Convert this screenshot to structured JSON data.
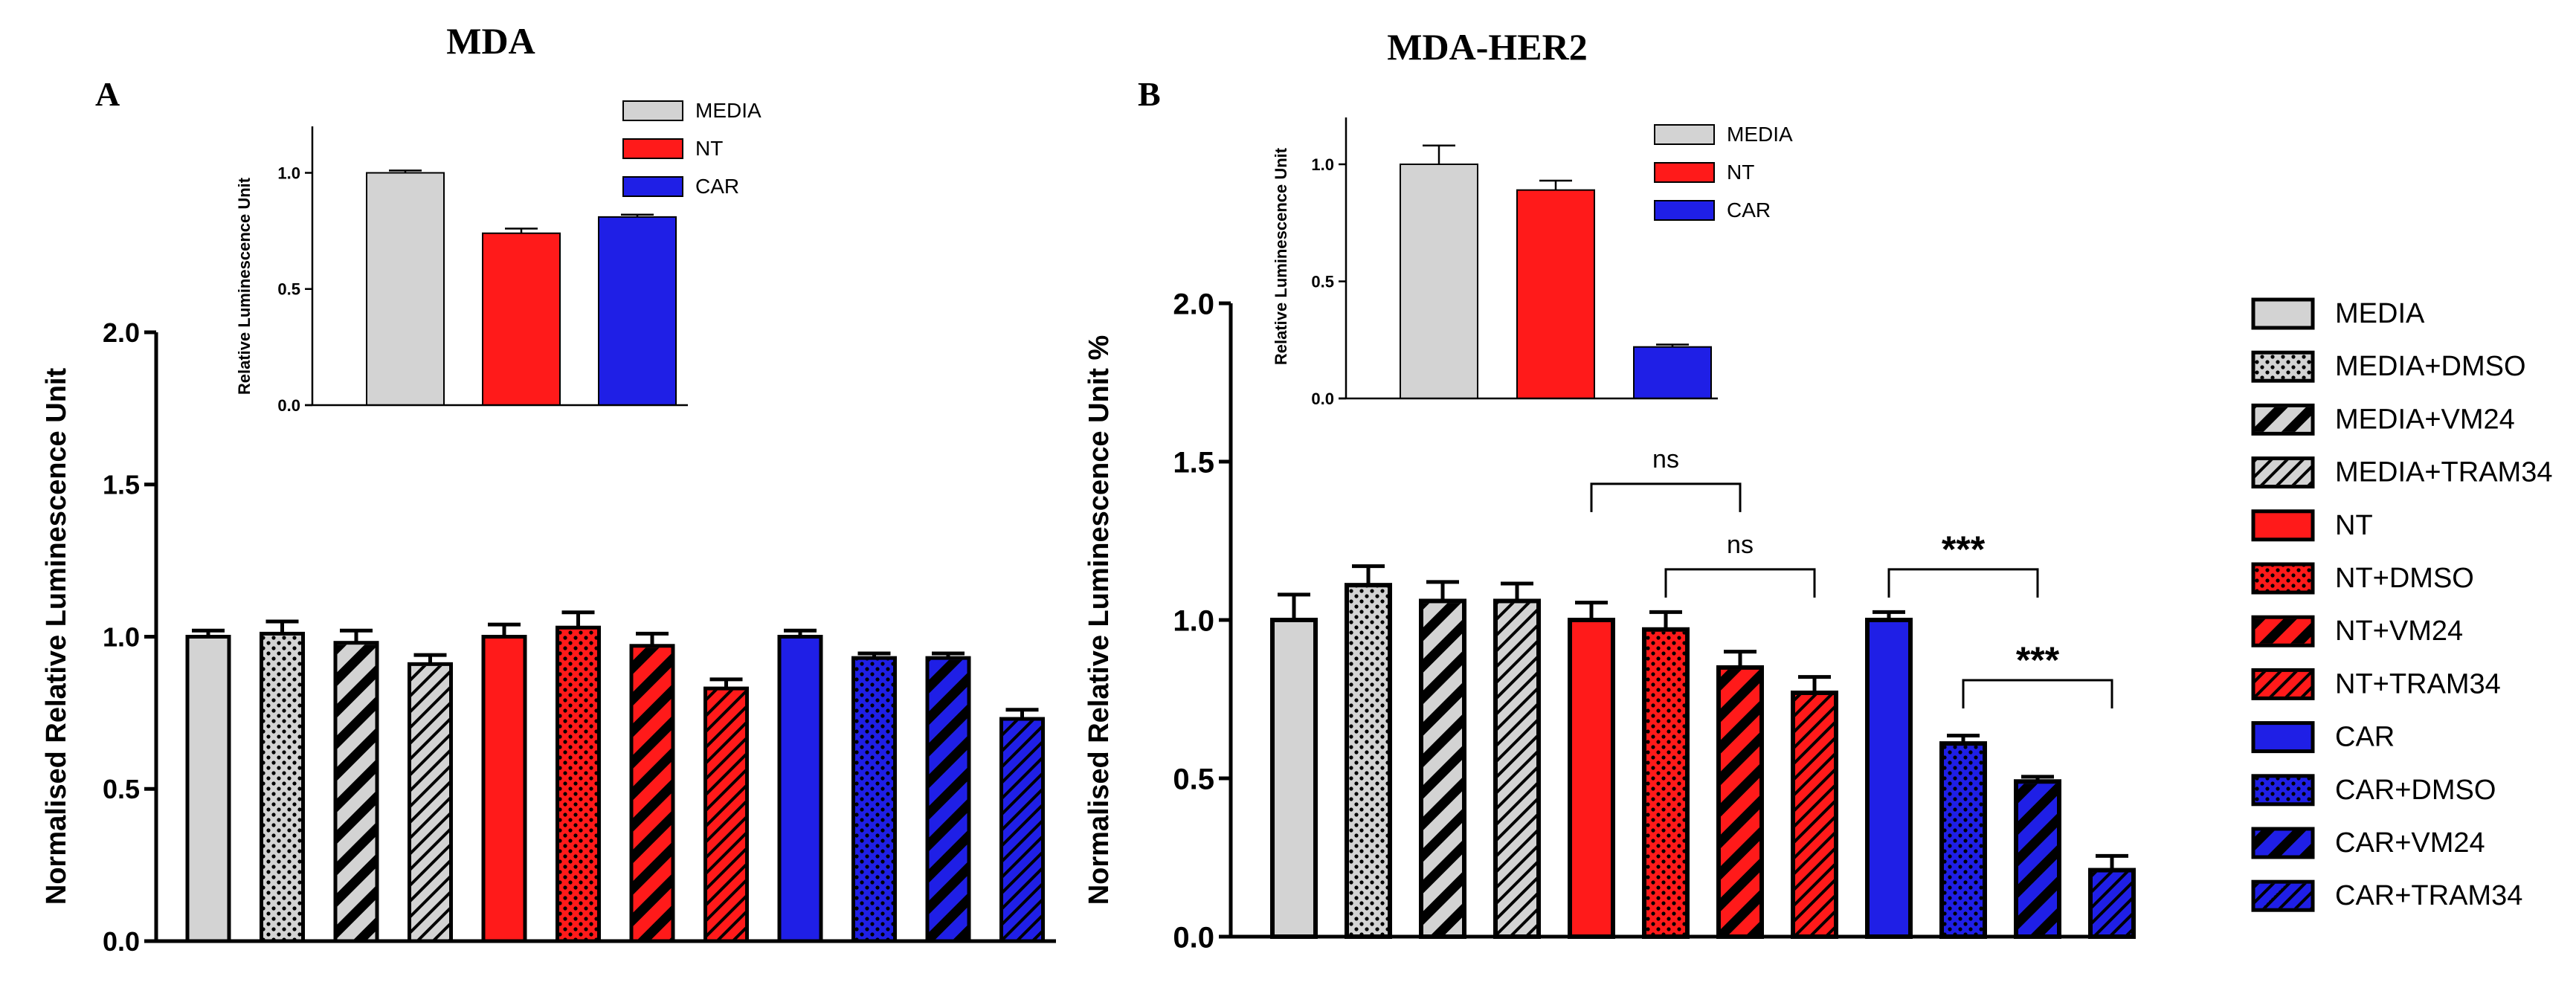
{
  "colors": {
    "media": "#d3d3d3",
    "nt": "#ff1a1a",
    "car": "#1f1fe6",
    "axis": "#000000"
  },
  "legend": {
    "items": [
      {
        "label": "MEDIA",
        "color": "#d3d3d3",
        "pattern": "solid"
      },
      {
        "label": "MEDIA+DMSO",
        "color": "#d3d3d3",
        "pattern": "dots"
      },
      {
        "label": "MEDIA+VM24",
        "color": "#d3d3d3",
        "pattern": "wide-diagonal"
      },
      {
        "label": "MEDIA+TRAM34",
        "color": "#d3d3d3",
        "pattern": "thin-diagonal"
      },
      {
        "label": "NT",
        "color": "#ff1a1a",
        "pattern": "solid"
      },
      {
        "label": "NT+DMSO",
        "color": "#ff1a1a",
        "pattern": "dots"
      },
      {
        "label": "NT+VM24",
        "color": "#ff1a1a",
        "pattern": "wide-diagonal"
      },
      {
        "label": "NT+TRAM34",
        "color": "#ff1a1a",
        "pattern": "thin-diagonal"
      },
      {
        "label": "CAR",
        "color": "#1f1fe6",
        "pattern": "solid"
      },
      {
        "label": "CAR+DMSO",
        "color": "#1f1fe6",
        "pattern": "dots"
      },
      {
        "label": "CAR+VM24",
        "color": "#1f1fe6",
        "pattern": "wide-diagonal"
      },
      {
        "label": "CAR+TRAM34",
        "color": "#1f1fe6",
        "pattern": "thin-diagonal"
      }
    ]
  },
  "chart_data": [
    {
      "id": "A-main",
      "type": "bar",
      "title": "MDA",
      "panel_label": "A",
      "ylabel": "Normalised Relative Luminescence Unit",
      "ylim": [
        0,
        2.0
      ],
      "yticks": [
        "0.0",
        "0.5",
        "1.0",
        "1.5",
        "2.0"
      ],
      "grid": false,
      "categories": [
        "MEDIA",
        "MEDIA+DMSO",
        "MEDIA+VM24",
        "MEDIA+TRAM34",
        "NT",
        "NT+DMSO",
        "NT+VM24",
        "NT+TRAM34",
        "CAR",
        "CAR+DMSO",
        "CAR+VM24",
        "CAR+TRAM34"
      ],
      "values": [
        1.0,
        1.01,
        0.98,
        0.91,
        1.0,
        1.03,
        0.97,
        0.83,
        1.0,
        0.93,
        0.93,
        0.73
      ],
      "errors": [
        0.02,
        0.04,
        0.04,
        0.03,
        0.04,
        0.05,
        0.04,
        0.03,
        0.02,
        0.015,
        0.015,
        0.03
      ]
    },
    {
      "id": "A-inset",
      "type": "bar",
      "title": "",
      "ylabel": "Relative Luminescence Unit",
      "ylim": [
        0,
        1.2
      ],
      "yticks": [
        "0.0",
        "0.5",
        "1.0"
      ],
      "categories": [
        "MEDIA",
        "NT",
        "CAR"
      ],
      "values": [
        1.0,
        0.74,
        0.81
      ],
      "errors": [
        0.01,
        0.02,
        0.01
      ],
      "legend": [
        "MEDIA",
        "NT",
        "CAR"
      ]
    },
    {
      "id": "B-main",
      "type": "bar",
      "title": "MDA-HER2",
      "panel_label": "B",
      "ylabel": "Normalised Relative Luminescence Unit %",
      "ylim": [
        0,
        2.0
      ],
      "yticks": [
        "0.0",
        "0.5",
        "1.0",
        "1.5",
        "2.0"
      ],
      "grid": false,
      "categories": [
        "MEDIA",
        "MEDIA+DMSO",
        "MEDIA+VM24",
        "MEDIA+TRAM34",
        "NT",
        "NT+DMSO",
        "NT+VM24",
        "NT+TRAM34",
        "CAR",
        "CAR+DMSO",
        "CAR+VM24",
        "CAR+TRAM34"
      ],
      "values": [
        1.0,
        1.11,
        1.06,
        1.06,
        1.0,
        0.97,
        0.85,
        0.77,
        1.0,
        0.61,
        0.49,
        0.21
      ],
      "errors": [
        0.08,
        0.06,
        0.06,
        0.055,
        0.055,
        0.055,
        0.05,
        0.05,
        0.025,
        0.025,
        0.015,
        0.045
      ],
      "annotations": [
        {
          "from": 4,
          "to": 6,
          "y": 1.43,
          "text": "ns"
        },
        {
          "from": 5,
          "to": 7,
          "y": 1.16,
          "text": "ns"
        },
        {
          "from": 8,
          "to": 10,
          "y": 1.16,
          "text": "***"
        },
        {
          "from": 9,
          "to": 11,
          "y": 0.81,
          "text": "***"
        }
      ]
    },
    {
      "id": "B-inset",
      "type": "bar",
      "title": "",
      "ylabel": "Relative Luminescence Unit",
      "ylim": [
        0,
        1.2
      ],
      "yticks": [
        "0.0",
        "0.5",
        "1.0"
      ],
      "categories": [
        "MEDIA",
        "NT",
        "CAR"
      ],
      "values": [
        1.0,
        0.89,
        0.22
      ],
      "errors": [
        0.08,
        0.04,
        0.01
      ],
      "legend": [
        "MEDIA",
        "NT",
        "CAR"
      ]
    }
  ]
}
